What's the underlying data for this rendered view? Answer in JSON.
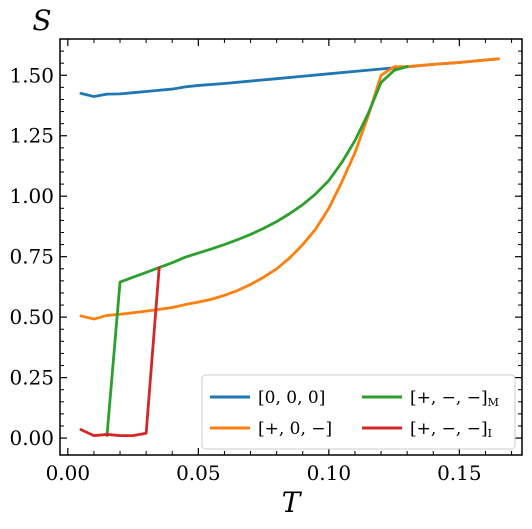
{
  "chart_data": {
    "type": "line",
    "xlabel": "T",
    "ylabel": "S",
    "xlim": [
      -0.003,
      0.174
    ],
    "ylim": [
      -0.07,
      1.65
    ],
    "xticks": [
      0.0,
      0.05,
      0.1,
      0.15
    ],
    "xtick_labels": [
      "0.00",
      "0.05",
      "0.10",
      "0.15"
    ],
    "yticks": [
      0.0,
      0.25,
      0.5,
      0.75,
      1.0,
      1.25,
      1.5
    ],
    "ytick_labels": [
      "0.00",
      "0.25",
      "0.50",
      "0.75",
      "1.00",
      "1.25",
      "1.50"
    ],
    "grid": false,
    "legend_position": "bottom-right",
    "series": [
      {
        "name": "[0, 0, 0]",
        "color": "#1f77b4",
        "x": [
          0.005,
          0.01,
          0.015,
          0.02,
          0.025,
          0.03,
          0.035,
          0.04,
          0.045,
          0.05,
          0.06,
          0.07,
          0.08,
          0.09,
          0.1,
          0.11,
          0.12,
          0.13,
          0.14,
          0.15,
          0.16,
          0.165
        ],
        "y": [
          1.425,
          1.412,
          1.422,
          1.423,
          1.428,
          1.433,
          1.438,
          1.443,
          1.452,
          1.458,
          1.466,
          1.476,
          1.486,
          1.496,
          1.506,
          1.516,
          1.526,
          1.535,
          1.545,
          1.553,
          1.563,
          1.568
        ]
      },
      {
        "name": "[+, 0, −]",
        "color": "#ff7f0e",
        "x": [
          0.005,
          0.01,
          0.015,
          0.02,
          0.025,
          0.03,
          0.035,
          0.04,
          0.045,
          0.05,
          0.055,
          0.06,
          0.065,
          0.07,
          0.075,
          0.08,
          0.085,
          0.09,
          0.095,
          0.1,
          0.105,
          0.11,
          0.115,
          0.12,
          0.125,
          0.13,
          0.14,
          0.15,
          0.16,
          0.165
        ],
        "y": [
          0.505,
          0.492,
          0.507,
          0.512,
          0.518,
          0.525,
          0.532,
          0.54,
          0.552,
          0.562,
          0.574,
          0.59,
          0.61,
          0.635,
          0.665,
          0.7,
          0.745,
          0.8,
          0.865,
          0.95,
          1.06,
          1.18,
          1.33,
          1.5,
          1.535,
          1.536,
          1.545,
          1.553,
          1.563,
          1.568
        ]
      },
      {
        "name": "[+, −, −]M",
        "color": "#2ca02c",
        "x": [
          0.015,
          0.02,
          0.025,
          0.03,
          0.035,
          0.04,
          0.045,
          0.05,
          0.055,
          0.06,
          0.065,
          0.07,
          0.075,
          0.08,
          0.085,
          0.09,
          0.095,
          0.1,
          0.105,
          0.11,
          0.115,
          0.12,
          0.125,
          0.13
        ],
        "y": [
          0.01,
          0.645,
          0.665,
          0.685,
          0.705,
          0.725,
          0.748,
          0.765,
          0.782,
          0.8,
          0.82,
          0.842,
          0.867,
          0.895,
          0.928,
          0.965,
          1.01,
          1.065,
          1.14,
          1.23,
          1.34,
          1.47,
          1.52,
          1.536
        ]
      },
      {
        "name": "[+, −, −]I",
        "color": "#d62728",
        "x": [
          0.005,
          0.01,
          0.015,
          0.02,
          0.025,
          0.03,
          0.035
        ],
        "y": [
          0.035,
          0.01,
          0.015,
          0.01,
          0.01,
          0.02,
          0.705
        ]
      }
    ],
    "legend": [
      {
        "base": "[0, 0, 0]",
        "sub": "",
        "color": "#1f77b4"
      },
      {
        "base": "[+, −, −]",
        "sub": "M",
        "color": "#2ca02c"
      },
      {
        "base": "[+, 0, −]",
        "sub": "",
        "color": "#ff7f0e"
      },
      {
        "base": "[+, −, −]",
        "sub": "I",
        "color": "#d62728"
      }
    ]
  }
}
